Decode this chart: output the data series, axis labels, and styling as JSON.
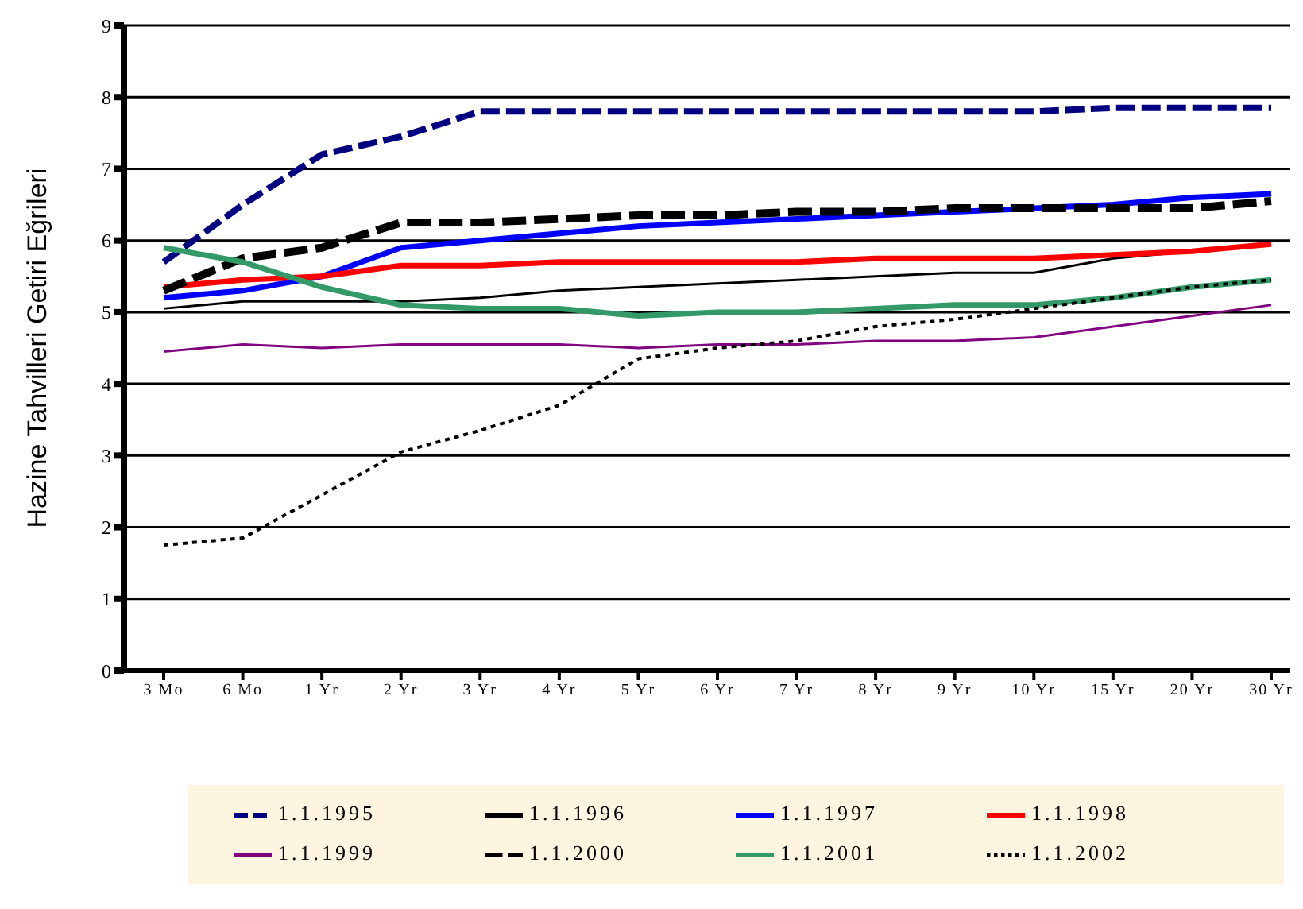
{
  "chart_data": {
    "type": "line",
    "ylabel": "Hazine Tahvilleri Getiri Eğrileri",
    "categories": [
      "3 Mo",
      "6 Mo",
      "1 Yr",
      "2 Yr",
      "3 Yr",
      "4 Yr",
      "5 Yr",
      "6 Yr",
      "7 Yr",
      "8 Yr",
      "9 Yr",
      "10 Yr",
      "15 Yr",
      "20 Yr",
      "30 Yr"
    ],
    "ylim": [
      0,
      9
    ],
    "yticks": [
      0,
      1,
      2,
      3,
      4,
      5,
      6,
      7,
      8,
      9
    ],
    "grid": "y",
    "legend": "bottom",
    "marker": "none",
    "series": [
      {
        "name": "1.1.1995",
        "color": "#000080",
        "line_style": "dashed",
        "values": [
          5.7,
          6.5,
          7.2,
          7.45,
          7.8,
          7.8,
          7.8,
          7.8,
          7.8,
          7.8,
          7.8,
          7.8,
          7.85,
          7.85,
          7.85
        ]
      },
      {
        "name": "1.1.1996",
        "color": "#000000",
        "line_style": "solid",
        "values": [
          5.05,
          5.15,
          5.15,
          5.15,
          5.2,
          5.3,
          5.35,
          5.4,
          5.45,
          5.5,
          5.55,
          5.55,
          5.75,
          5.85,
          5.95
        ]
      },
      {
        "name": "1.1.1997",
        "color": "#0000ff",
        "line_style": "solid",
        "values": [
          5.2,
          5.3,
          5.5,
          5.9,
          6.0,
          6.1,
          6.2,
          6.25,
          6.3,
          6.35,
          6.4,
          6.45,
          6.5,
          6.6,
          6.65
        ]
      },
      {
        "name": "1.1.1998",
        "color": "#ff0000",
        "line_style": "solid",
        "values": [
          5.35,
          5.45,
          5.5,
          5.65,
          5.65,
          5.7,
          5.7,
          5.7,
          5.7,
          5.75,
          5.75,
          5.75,
          5.8,
          5.85,
          5.95
        ]
      },
      {
        "name": "1.1.1999",
        "color": "#800080",
        "line_style": "solid",
        "values": [
          4.45,
          4.55,
          4.5,
          4.55,
          4.55,
          4.55,
          4.5,
          4.55,
          4.55,
          4.6,
          4.6,
          4.65,
          4.8,
          4.95,
          5.1
        ]
      },
      {
        "name": "1.1.2000",
        "color": "#000000",
        "line_style": "dashed",
        "values": [
          5.3,
          5.75,
          5.9,
          6.25,
          6.25,
          6.3,
          6.35,
          6.35,
          6.4,
          6.4,
          6.45,
          6.45,
          6.45,
          6.45,
          6.55
        ]
      },
      {
        "name": "1.1.2001",
        "color": "#339966",
        "line_style": "solid",
        "values": [
          5.9,
          5.7,
          5.35,
          5.1,
          5.05,
          5.05,
          4.95,
          5.0,
          5.0,
          5.05,
          5.1,
          5.1,
          5.2,
          5.35,
          5.45
        ]
      },
      {
        "name": "1.1.2002",
        "color": "#000000",
        "line_style": "dotted",
        "values": [
          1.75,
          1.85,
          2.45,
          3.05,
          3.35,
          3.7,
          4.35,
          4.5,
          4.6,
          4.8,
          4.9,
          5.05,
          5.2,
          5.35,
          5.45
        ]
      }
    ]
  }
}
